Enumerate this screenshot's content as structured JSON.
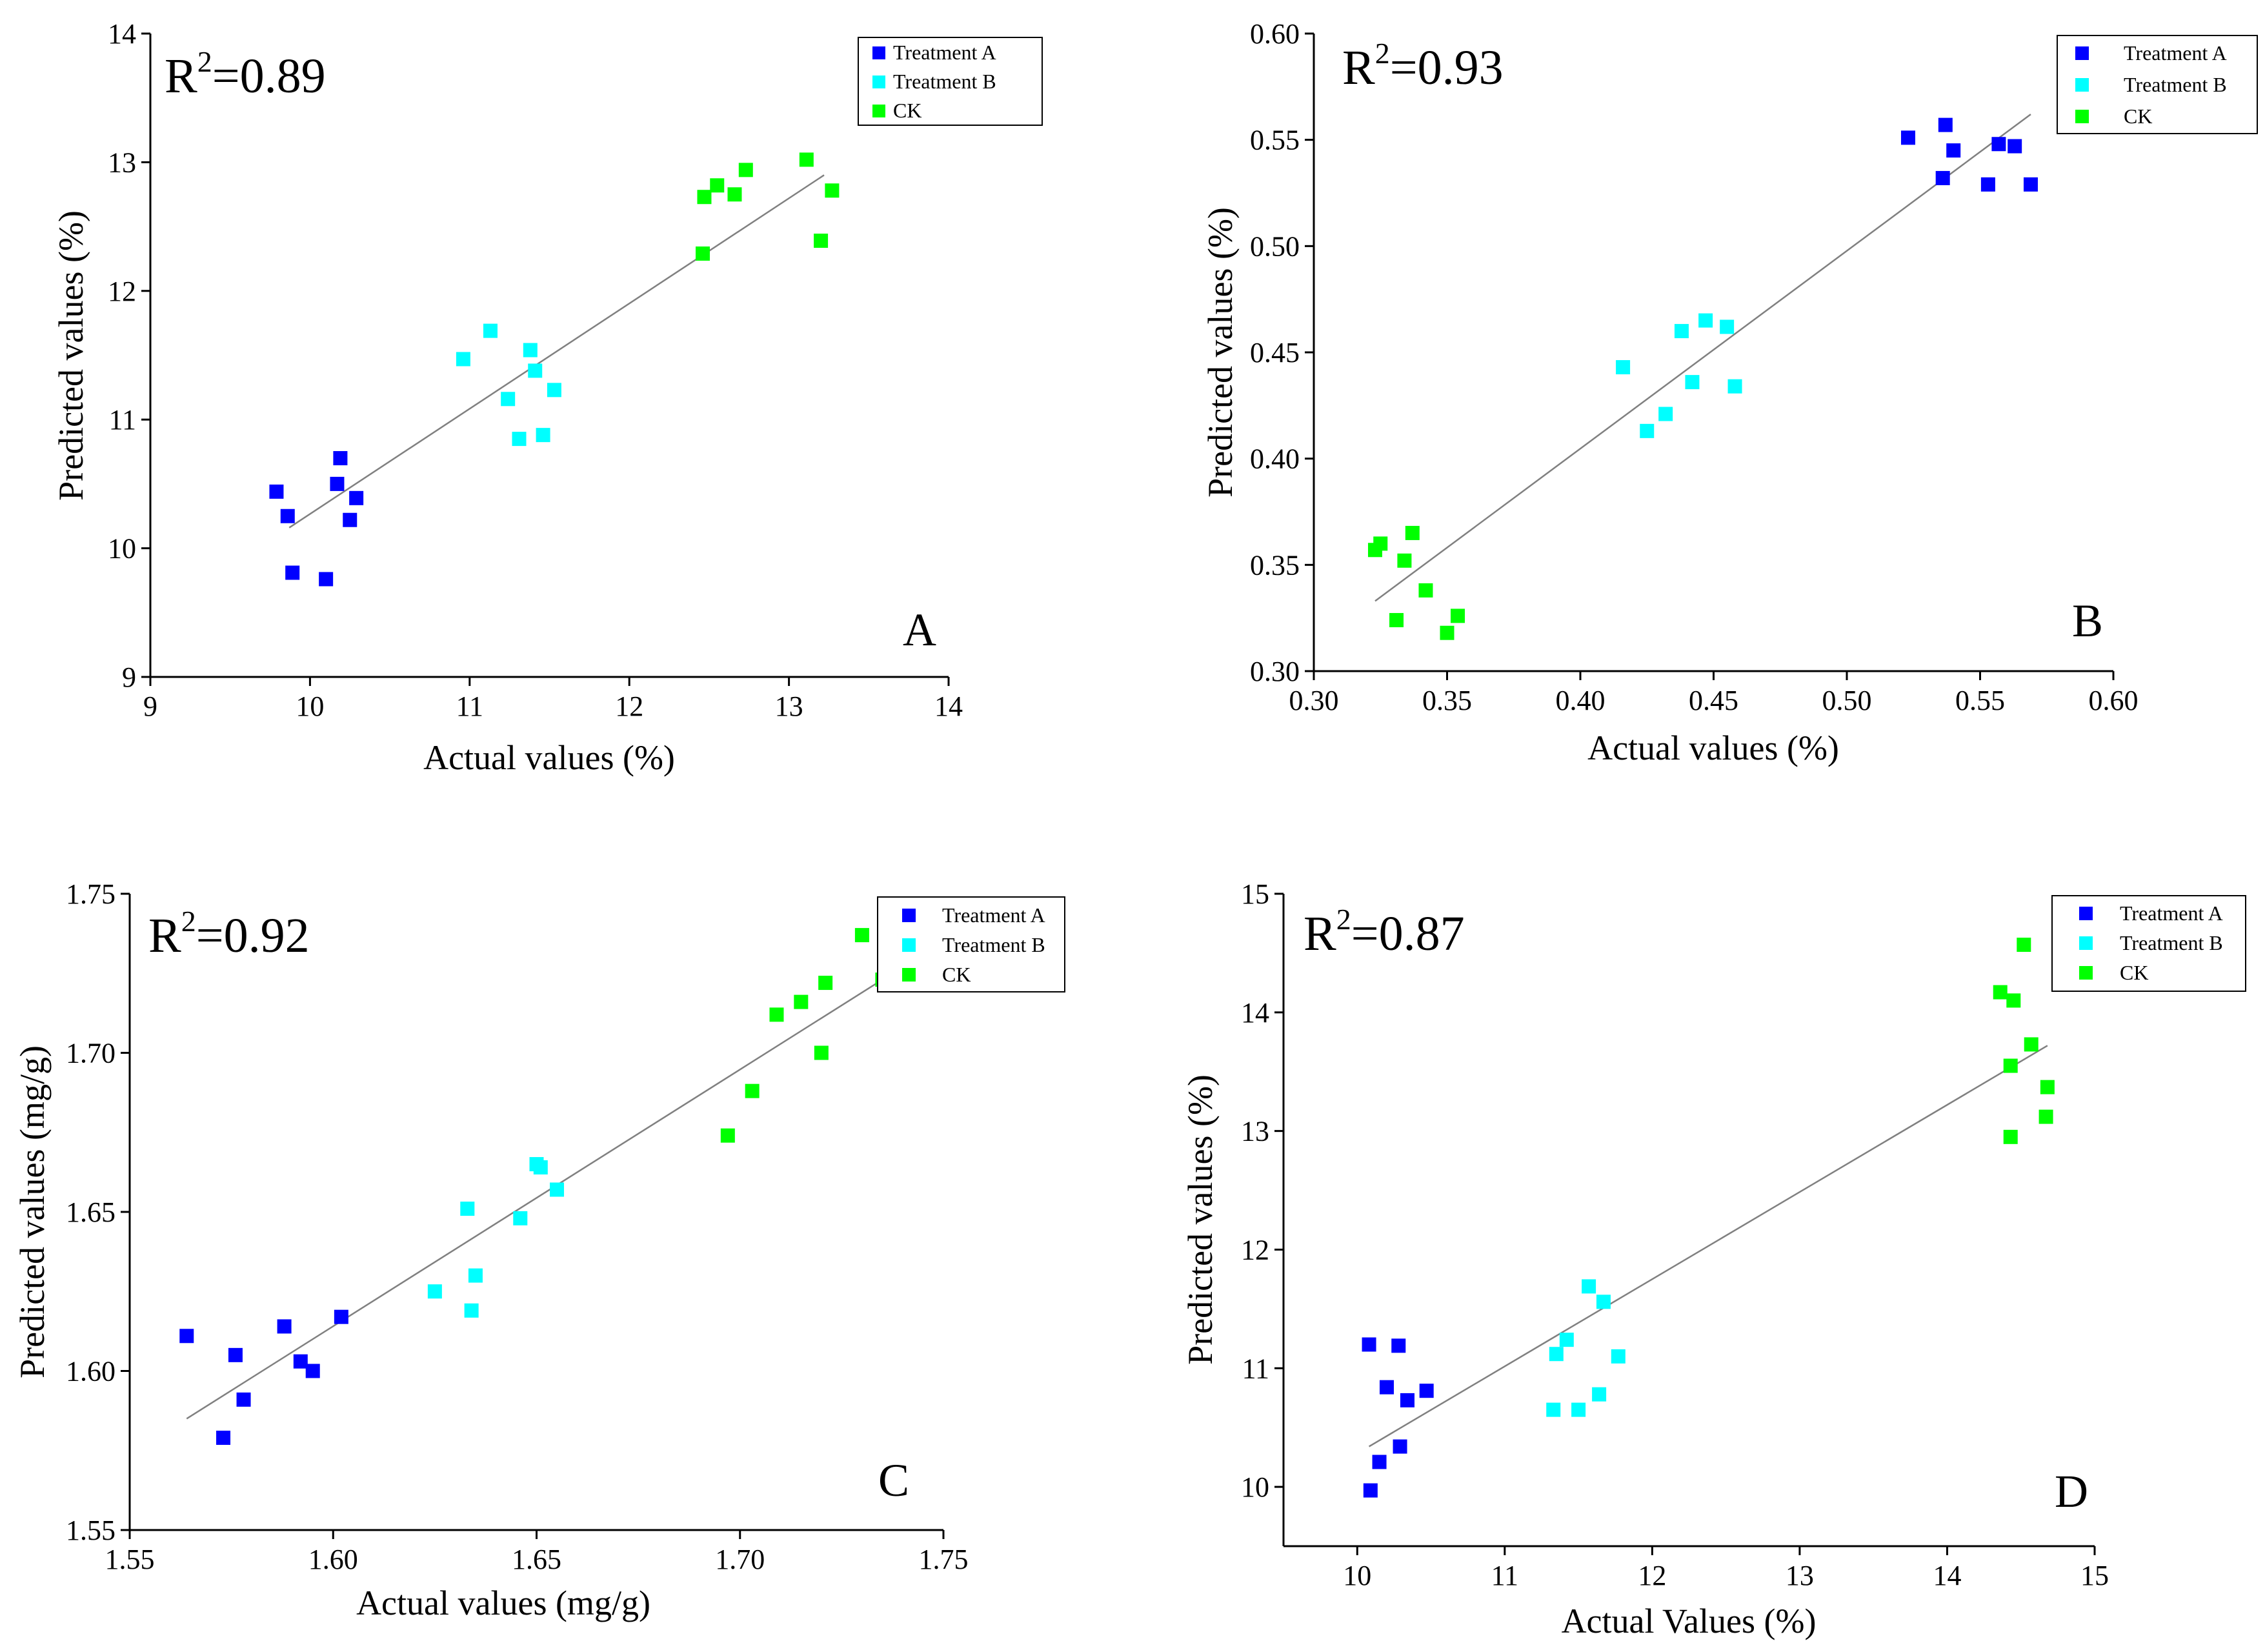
{
  "colors": {
    "Treatment A": "#0000ff",
    "Treatment B": "#00ffff",
    "CK": "#00ff00",
    "fit": "#808080"
  },
  "chart_data": [
    {
      "id": "A",
      "type": "scatter",
      "panel_label": "A",
      "r2_prefix": "R",
      "r2_exp": "2",
      "r2_value": "=0.89",
      "xlabel": "Actual  values (%)",
      "ylabel": "Predicted values (%)",
      "xlim": [
        9,
        14
      ],
      "ylim": [
        9,
        14
      ],
      "xticks": [
        9,
        10,
        11,
        12,
        13,
        14
      ],
      "xtick_labels": [
        "9",
        "10",
        "11",
        "12",
        "13",
        "14"
      ],
      "yticks": [
        9,
        10,
        11,
        12,
        13,
        14
      ],
      "ytick_labels": [
        "9",
        "10",
        "11",
        "12",
        "13",
        "14"
      ],
      "legend": [
        "Treatment A",
        "Treatment B",
        "CK"
      ],
      "legend_position": "top-right",
      "fit_line": [
        [
          9.87,
          10.16
        ],
        [
          13.22,
          12.9
        ]
      ],
      "series": [
        {
          "name": "Treatment A",
          "points": [
            [
              9.79,
              10.44
            ],
            [
              9.86,
              10.25
            ],
            [
              9.89,
              9.81
            ],
            [
              10.1,
              9.76
            ],
            [
              10.17,
              10.5
            ],
            [
              10.19,
              10.7
            ],
            [
              10.25,
              10.22
            ],
            [
              10.29,
              10.39
            ]
          ]
        },
        {
          "name": "Treatment B",
          "points": [
            [
              10.96,
              11.47
            ],
            [
              11.13,
              11.69
            ],
            [
              11.24,
              11.16
            ],
            [
              11.31,
              10.85
            ],
            [
              11.38,
              11.54
            ],
            [
              11.41,
              11.38
            ],
            [
              11.46,
              10.88
            ],
            [
              11.53,
              11.23
            ]
          ]
        },
        {
          "name": "CK",
          "points": [
            [
              12.46,
              12.29
            ],
            [
              12.47,
              12.73
            ],
            [
              12.55,
              12.82
            ],
            [
              12.66,
              12.75
            ],
            [
              12.73,
              12.94
            ],
            [
              13.11,
              13.02
            ],
            [
              13.2,
              12.39
            ],
            [
              13.27,
              12.78
            ]
          ]
        }
      ]
    },
    {
      "id": "B",
      "type": "scatter",
      "panel_label": "B",
      "r2_prefix": "R",
      "r2_exp": "2",
      "r2_value": "=0.93",
      "xlabel": "Actual  values (%)",
      "ylabel": "Predicted  values (%)",
      "xlim": [
        0.3,
        0.6
      ],
      "ylim": [
        0.3,
        0.6
      ],
      "xticks": [
        0.3,
        0.35,
        0.4,
        0.45,
        0.5,
        0.55,
        0.6
      ],
      "xtick_labels": [
        "0.30",
        "0.35",
        "0.40",
        "0.45",
        "0.50",
        "0.55",
        "0.60"
      ],
      "yticks": [
        0.3,
        0.35,
        0.4,
        0.45,
        0.5,
        0.55,
        0.6
      ],
      "ytick_labels": [
        "0.30",
        "0.35",
        "0.40",
        "0.45",
        "0.50",
        "0.55",
        "0.60"
      ],
      "legend": [
        "Treatment A",
        "Treatment B",
        "CK"
      ],
      "legend_position": "top-right",
      "fit_line": [
        [
          0.323,
          0.333
        ],
        [
          0.569,
          0.562
        ]
      ],
      "series": [
        {
          "name": "Treatment A",
          "points": [
            [
              0.523,
              0.551
            ],
            [
              0.536,
              0.532
            ],
            [
              0.537,
              0.557
            ],
            [
              0.54,
              0.545
            ],
            [
              0.553,
              0.529
            ],
            [
              0.557,
              0.548
            ],
            [
              0.563,
              0.547
            ],
            [
              0.569,
              0.529
            ]
          ]
        },
        {
          "name": "Treatment B",
          "points": [
            [
              0.416,
              0.443
            ],
            [
              0.425,
              0.413
            ],
            [
              0.432,
              0.421
            ],
            [
              0.438,
              0.46
            ],
            [
              0.442,
              0.436
            ],
            [
              0.447,
              0.465
            ],
            [
              0.455,
              0.462
            ],
            [
              0.458,
              0.434
            ]
          ]
        },
        {
          "name": "CK",
          "points": [
            [
              0.323,
              0.357
            ],
            [
              0.325,
              0.36
            ],
            [
              0.331,
              0.324
            ],
            [
              0.334,
              0.352
            ],
            [
              0.337,
              0.365
            ],
            [
              0.342,
              0.338
            ],
            [
              0.35,
              0.318
            ],
            [
              0.354,
              0.326
            ]
          ]
        }
      ]
    },
    {
      "id": "C",
      "type": "scatter",
      "panel_label": "C",
      "r2_prefix": "R",
      "r2_exp": "2",
      "r2_value": "=0.92",
      "xlabel": "Actual  values (mg/g)",
      "ylabel": "Predicted  values (mg/g)",
      "xlim": [
        1.55,
        1.75
      ],
      "ylim": [
        1.55,
        1.75
      ],
      "xticks": [
        1.55,
        1.6,
        1.65,
        1.7,
        1.75
      ],
      "xtick_labels": [
        "1.55",
        "1.60",
        "1.65",
        "1.70",
        "1.75"
      ],
      "yticks": [
        1.55,
        1.6,
        1.65,
        1.7,
        1.75
      ],
      "ytick_labels": [
        "1.55",
        "1.60",
        "1.65",
        "1.70",
        "1.75"
      ],
      "legend": [
        "Treatment A",
        "Treatment B",
        "CK"
      ],
      "legend_position": "top-right",
      "fit_line": [
        [
          1.564,
          1.585
        ],
        [
          1.735,
          1.723
        ]
      ],
      "series": [
        {
          "name": "Treatment A",
          "points": [
            [
              1.564,
              1.611
            ],
            [
              1.573,
              1.579
            ],
            [
              1.576,
              1.605
            ],
            [
              1.578,
              1.591
            ],
            [
              1.588,
              1.614
            ],
            [
              1.592,
              1.603
            ],
            [
              1.595,
              1.6
            ],
            [
              1.602,
              1.617
            ]
          ]
        },
        {
          "name": "Treatment B",
          "points": [
            [
              1.625,
              1.625
            ],
            [
              1.633,
              1.651
            ],
            [
              1.634,
              1.619
            ],
            [
              1.635,
              1.63
            ],
            [
              1.646,
              1.648
            ],
            [
              1.65,
              1.665
            ],
            [
              1.651,
              1.664
            ],
            [
              1.655,
              1.657
            ]
          ]
        },
        {
          "name": "CK",
          "points": [
            [
              1.697,
              1.674
            ],
            [
              1.703,
              1.688
            ],
            [
              1.709,
              1.712
            ],
            [
              1.715,
              1.716
            ],
            [
              1.72,
              1.7
            ],
            [
              1.721,
              1.722
            ],
            [
              1.73,
              1.737
            ],
            [
              1.735,
              1.723
            ]
          ]
        }
      ]
    },
    {
      "id": "D",
      "type": "scatter",
      "panel_label": "D",
      "r2_prefix": "R",
      "r2_exp": "2",
      "r2_value": "=0.87",
      "xlabel": "Actual  Values (%)",
      "ylabel": "Predicted  values (%)",
      "xlim": [
        9.5,
        15
      ],
      "ylim": [
        9.5,
        15
      ],
      "xticks": [
        10,
        11,
        12,
        13,
        14,
        15
      ],
      "xtick_labels": [
        "10",
        "11",
        "12",
        "13",
        "14",
        "15"
      ],
      "yticks": [
        10,
        11,
        12,
        13,
        14,
        15
      ],
      "ytick_labels": [
        "10",
        "11",
        "12",
        "13",
        "14",
        "15"
      ],
      "legend": [
        "Treatment A",
        "Treatment B",
        "CK"
      ],
      "legend_position": "top-right",
      "fit_line": [
        [
          10.08,
          10.34
        ],
        [
          14.68,
          13.72
        ]
      ],
      "series": [
        {
          "name": "Treatment A",
          "points": [
            [
              10.08,
              11.2
            ],
            [
              10.09,
              9.97
            ],
            [
              10.15,
              10.21
            ],
            [
              10.2,
              10.84
            ],
            [
              10.28,
              11.19
            ],
            [
              10.29,
              10.34
            ],
            [
              10.34,
              10.73
            ],
            [
              10.47,
              10.81
            ]
          ]
        },
        {
          "name": "Treatment B",
          "points": [
            [
              11.33,
              10.65
            ],
            [
              11.35,
              11.12
            ],
            [
              11.42,
              11.24
            ],
            [
              11.5,
              10.65
            ],
            [
              11.57,
              11.69
            ],
            [
              11.64,
              10.78
            ],
            [
              11.67,
              11.56
            ],
            [
              11.77,
              11.1
            ]
          ]
        },
        {
          "name": "CK",
          "points": [
            [
              14.36,
              14.17
            ],
            [
              14.43,
              12.95
            ],
            [
              14.43,
              13.55
            ],
            [
              14.45,
              14.1
            ],
            [
              14.52,
              14.57
            ],
            [
              14.57,
              13.73
            ],
            [
              14.67,
              13.12
            ],
            [
              14.68,
              13.37
            ]
          ]
        }
      ]
    }
  ]
}
